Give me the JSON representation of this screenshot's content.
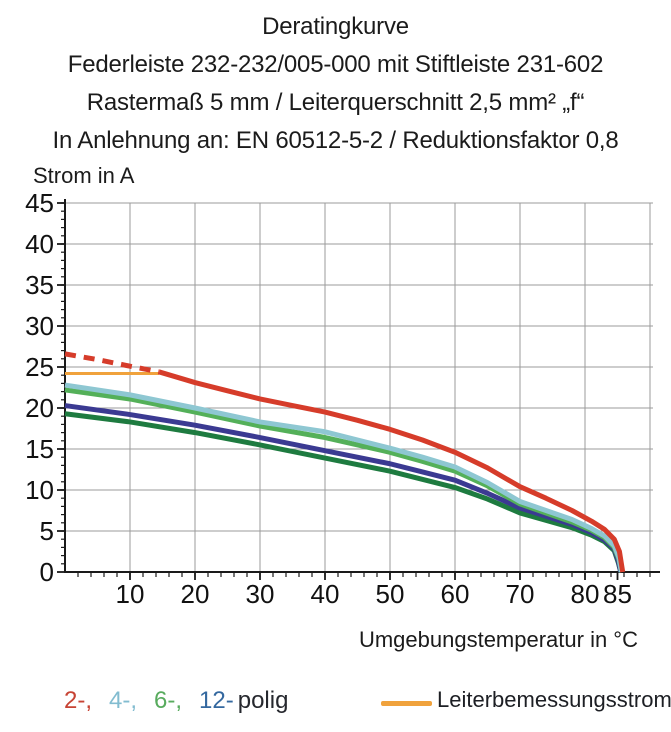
{
  "header": {
    "line1": "Deratingkurve",
    "line2": "Federleiste 232-232/005-000 mit Stiftleiste 231-602",
    "line3": "Rastermaß 5 mm / Leiterquerschnitt 2,5 mm² „f“",
    "line4": "In Anlehnung an: EN 60512-5-2 / Reduktionsfaktor 0,8"
  },
  "chart_data": {
    "type": "line",
    "title": "Deratingkurve",
    "xlabel": "Umgebungstemperatur in °C",
    "ylabel": "Strom in A",
    "xlim": [
      0,
      91
    ],
    "ylim": [
      0,
      45
    ],
    "grid": true,
    "x_major_gridlines": [
      10,
      20,
      30,
      40,
      50,
      60,
      70,
      80,
      90
    ],
    "y_major_gridlines": [
      5,
      10,
      15,
      20,
      25,
      30,
      35,
      40,
      45
    ],
    "x_tick_labels": [
      10,
      20,
      30,
      40,
      50,
      60,
      70,
      80,
      85
    ],
    "y_tick_labels": [
      0,
      5,
      10,
      15,
      20,
      25,
      30,
      35,
      40,
      45
    ],
    "legend_position": "bottom",
    "series": [
      {
        "name": "unlabeled (dark green)",
        "color": "#1e7b40",
        "dash": false,
        "width": 5,
        "points": [
          [
            0,
            19.3
          ],
          [
            10,
            18.3
          ],
          [
            20,
            17.0
          ],
          [
            30,
            15.5
          ],
          [
            40,
            13.9
          ],
          [
            50,
            12.3
          ],
          [
            60,
            10.3
          ],
          [
            65,
            8.9
          ],
          [
            70,
            7.2
          ],
          [
            74,
            6.3
          ],
          [
            78,
            5.4
          ],
          [
            81,
            4.5
          ],
          [
            83,
            3.7
          ],
          [
            84.5,
            2.6
          ],
          [
            85.1,
            1.2
          ],
          [
            85.5,
            0
          ]
        ]
      },
      {
        "name": "12-polig",
        "color": "#3b3a92",
        "dash": false,
        "width": 5,
        "points": [
          [
            0,
            20.3
          ],
          [
            10,
            19.2
          ],
          [
            20,
            17.9
          ],
          [
            30,
            16.4
          ],
          [
            40,
            14.8
          ],
          [
            50,
            13.2
          ],
          [
            55,
            12.2
          ],
          [
            60,
            11.2
          ],
          [
            65,
            9.6
          ],
          [
            70,
            7.8
          ],
          [
            74,
            6.8
          ],
          [
            78,
            5.8
          ],
          [
            81,
            4.8
          ],
          [
            83,
            3.9
          ],
          [
            84.5,
            2.8
          ],
          [
            85.1,
            1.4
          ],
          [
            85.5,
            0
          ]
        ]
      },
      {
        "name": "6-polig",
        "color": "#54b059",
        "dash": false,
        "width": 5,
        "points": [
          [
            0,
            22.2
          ],
          [
            10,
            21.1
          ],
          [
            20,
            19.5
          ],
          [
            30,
            17.8
          ],
          [
            40,
            16.4
          ],
          [
            50,
            14.6
          ],
          [
            55,
            13.5
          ],
          [
            60,
            12.3
          ],
          [
            65,
            10.5
          ],
          [
            70,
            8.3
          ],
          [
            74,
            7.2
          ],
          [
            78,
            6.1
          ],
          [
            81,
            5.1
          ],
          [
            83,
            4.2
          ],
          [
            84.5,
            3.0
          ],
          [
            85.2,
            1.6
          ],
          [
            85.6,
            0
          ]
        ]
      },
      {
        "name": "4-polig",
        "color": "#8ec7d2",
        "dash": false,
        "width": 5,
        "points": [
          [
            0,
            22.8
          ],
          [
            10,
            21.6
          ],
          [
            20,
            20.0
          ],
          [
            30,
            18.3
          ],
          [
            40,
            17.1
          ],
          [
            50,
            15.1
          ],
          [
            55,
            14.0
          ],
          [
            60,
            12.8
          ],
          [
            65,
            10.9
          ],
          [
            70,
            8.6
          ],
          [
            74,
            7.5
          ],
          [
            78,
            6.4
          ],
          [
            81,
            5.3
          ],
          [
            83,
            4.4
          ],
          [
            84.5,
            3.2
          ],
          [
            85.2,
            1.8
          ],
          [
            85.6,
            0
          ]
        ]
      },
      {
        "name": "Leiterbemessungsstrom",
        "color": "#f0a23c",
        "dash": false,
        "width": 3,
        "points": [
          [
            0,
            24.2
          ],
          [
            14.5,
            24.2
          ]
        ]
      },
      {
        "name": "2-polig (dashed, above Leiterbemessungsstrom)",
        "color": "#d63c2a",
        "dash": true,
        "width": 5,
        "points": [
          [
            0,
            26.6
          ],
          [
            5,
            25.9
          ],
          [
            10,
            25.1
          ],
          [
            14.5,
            24.4
          ]
        ]
      },
      {
        "name": "2-polig",
        "color": "#d63c2a",
        "dash": false,
        "width": 5,
        "points": [
          [
            14.5,
            24.4
          ],
          [
            20,
            23.1
          ],
          [
            25,
            22.1
          ],
          [
            30,
            21.1
          ],
          [
            35,
            20.3
          ],
          [
            40,
            19.5
          ],
          [
            45,
            18.5
          ],
          [
            50,
            17.4
          ],
          [
            55,
            16.1
          ],
          [
            60,
            14.6
          ],
          [
            65,
            12.7
          ],
          [
            70,
            10.4
          ],
          [
            74,
            9.0
          ],
          [
            78,
            7.5
          ],
          [
            81,
            6.2
          ],
          [
            83,
            5.2
          ],
          [
            84.5,
            4.0
          ],
          [
            85.3,
            2.5
          ],
          [
            85.8,
            0
          ]
        ]
      }
    ]
  },
  "labels": {
    "ylabel": "Strom in A",
    "xlabel": "Umgebungstemperatur in °C"
  },
  "legend": {
    "poles": [
      {
        "label": "2-,",
        "color": "#c74334"
      },
      {
        "label": "4-,",
        "color": "#82bcd0"
      },
      {
        "label": "6-,",
        "color": "#58ab5e"
      },
      {
        "label": "12-",
        "color": "#34689f"
      }
    ],
    "poles_suffix": "polig",
    "rated": {
      "label": "Leiterbemessungsstrom",
      "swatch_color": "#f0a23c"
    }
  }
}
